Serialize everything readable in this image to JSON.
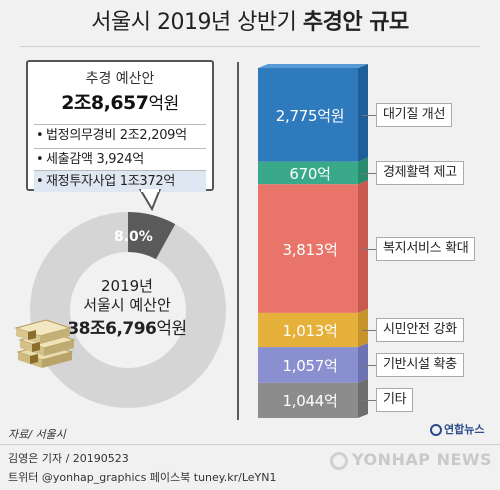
{
  "title": {
    "normal": "서울시 2019년 상반기 ",
    "bold": "추경안 규모"
  },
  "info_box": {
    "title": "추경 예산안",
    "total_value": "2조8,657",
    "total_unit": "억원",
    "rows": [
      {
        "bullet": "•",
        "text": "법정의무경비 2조2,209억"
      },
      {
        "bullet": "•",
        "text": "세출감액 3,924억"
      },
      {
        "bullet": "•",
        "text": "재정투자사업 1조372억"
      }
    ]
  },
  "donut": {
    "year": "2019년",
    "name": "서울시 예산안",
    "total_value": "38조6,796",
    "total_unit": "억원",
    "percent_label": "8.0%",
    "percent": 8.0,
    "color_main": "#d5d5d5",
    "color_highlight": "#5a5a5a"
  },
  "chart_data": {
    "type": "bar",
    "stacked": true,
    "title": "서울시 2019년 상반기 추경안 규모",
    "categories": [
      "대기질 개선",
      "경제활력 제고",
      "복지서비스 확대",
      "시민안전 강화",
      "기반시설 확충",
      "기타"
    ],
    "values": [
      2775,
      670,
      3813,
      1013,
      1057,
      1044
    ],
    "value_labels": [
      "2,775억원",
      "670억",
      "3,813억",
      "1,013억",
      "1,057억",
      "1,044억"
    ],
    "colors": [
      "#2f79bd",
      "#3aa98a",
      "#e8746a",
      "#e6b13a",
      "#8a8fcf",
      "#8c8c8c"
    ],
    "side_colors": [
      "#1f5f99",
      "#2a8a6e",
      "#c75950",
      "#c6942a",
      "#6d72b5",
      "#6e6e6e"
    ],
    "unit": "억원",
    "legend": "right"
  },
  "source": "자료/ 서울시",
  "credit": "김영은 기자 / 20190523",
  "credit2": "트위터 @yonhap_graphics  페이스북 tuney.kr/LeYN1",
  "logo_small": "연합뉴스",
  "watermark": "YONHAP NEWS"
}
